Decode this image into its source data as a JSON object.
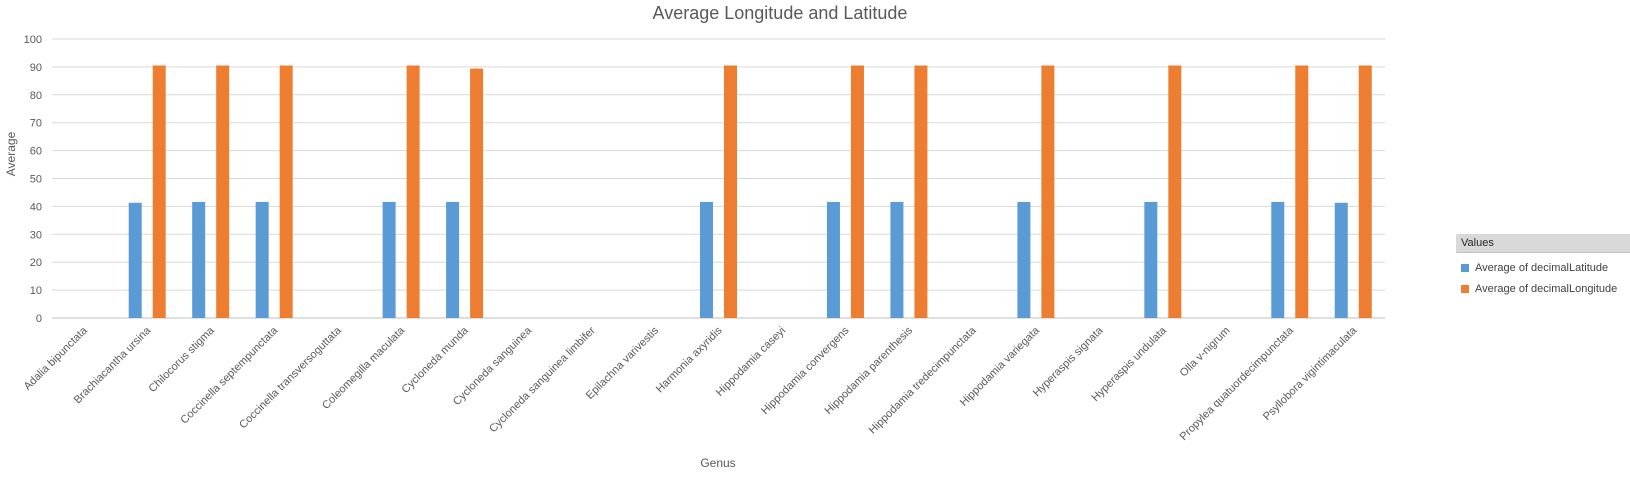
{
  "chart_data": {
    "type": "bar",
    "title": "Average Longitude and Latitude",
    "xlabel": "Genus",
    "ylabel": "Average",
    "ylim": [
      0,
      100
    ],
    "yticks": [
      0,
      10,
      20,
      30,
      40,
      50,
      60,
      70,
      80,
      90,
      100
    ],
    "grid": true,
    "legend_position": "right",
    "legend_title": "Values",
    "categories": [
      "Adalia bipunctata",
      "Brachiacantha ursina",
      "Chilocorus stigma",
      "Coccinella septempunctata",
      "Coccinella transversoguttata",
      "Coleomegilla maculata",
      "Cycloneda munda",
      "Cycloneda sanguinea",
      "Cycloneda sanguinea limbifer",
      "Epilachna varivestis",
      "Harmonia axyridis",
      "Hippodamia caseyi",
      "Hippodamia convergens",
      "Hippodamia parenthesis",
      "Hippodamia tredecimpunctata",
      "Hippodamia variegata",
      "Hyperaspis signata",
      "Hyperaspis undulata",
      "Olla v-nigrum",
      "Propylea quatuordecimpunctata",
      "Psyllobora vigintimaculata"
    ],
    "series": [
      {
        "name": "Average of decimalLatitude",
        "color": "#5b9bd5",
        "values": [
          0,
          41.3,
          41.6,
          41.6,
          0,
          41.6,
          41.6,
          0,
          0,
          0,
          41.6,
          0,
          41.6,
          41.6,
          0,
          41.6,
          0,
          41.6,
          0,
          41.6,
          41.3
        ]
      },
      {
        "name": "Average of decimalLongitude",
        "color": "#ed7d31",
        "values": [
          0,
          90.5,
          90.5,
          90.5,
          0,
          90.5,
          89.4,
          0,
          0,
          0,
          90.5,
          0,
          90.5,
          90.5,
          0,
          90.5,
          0,
          90.5,
          0,
          90.5,
          90.5
        ]
      }
    ]
  }
}
